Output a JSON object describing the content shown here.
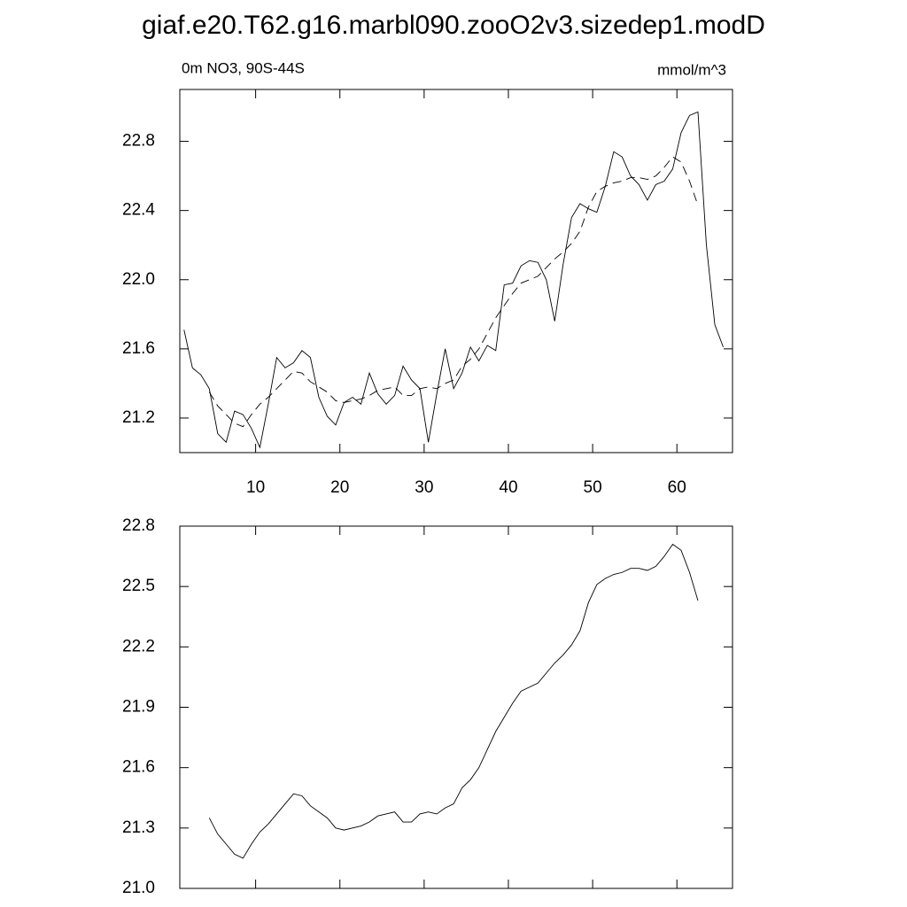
{
  "chart_data": [
    {
      "type": "line",
      "title": "giaf.e20.T62.g16.marbl090.zooO2v3.sizedep1.modD",
      "left_label": "0m NO3, 90S-44S",
      "right_label": "mmol/m^3",
      "x": [
        1.5,
        2.5,
        3.5,
        4.5,
        5.5,
        6.5,
        7.5,
        8.5,
        9.5,
        10.5,
        11.5,
        12.5,
        13.5,
        14.5,
        15.5,
        16.5,
        17.5,
        18.5,
        19.5,
        20.5,
        21.5,
        22.5,
        23.5,
        24.5,
        25.5,
        26.5,
        27.5,
        28.5,
        29.5,
        30.5,
        31.5,
        32.5,
        33.5,
        34.5,
        35.5,
        36.5,
        37.5,
        38.5,
        39.5,
        40.5,
        41.5,
        42.5,
        43.5,
        44.5,
        45.5,
        46.5,
        47.5,
        48.5,
        49.5,
        50.5,
        51.5,
        52.5,
        53.5,
        54.5,
        55.5,
        56.5,
        57.5,
        58.5,
        59.5,
        60.5,
        61.5,
        62.5,
        63.5,
        64.5,
        65.5
      ],
      "series": [
        {
          "color": "#000000",
          "dash": "solid",
          "values": [
            21.71,
            21.49,
            21.45,
            21.37,
            21.11,
            21.06,
            21.24,
            21.22,
            21.14,
            21.03,
            21.28,
            21.55,
            21.49,
            21.52,
            21.59,
            21.55,
            21.32,
            21.21,
            21.16,
            21.29,
            21.32,
            21.28,
            21.46,
            21.34,
            21.28,
            21.33,
            21.5,
            21.42,
            21.37,
            21.06,
            21.34,
            21.6,
            21.37,
            21.46,
            21.61,
            21.53,
            21.62,
            21.59,
            21.97,
            21.98,
            22.08,
            22.11,
            22.1,
            22.0,
            21.76,
            22.09,
            22.36,
            22.44,
            22.41,
            22.39,
            22.54,
            22.74,
            22.71,
            22.6,
            22.55,
            22.46,
            22.55,
            22.57,
            22.64,
            22.85,
            22.95,
            22.97,
            22.2,
            21.74,
            21.61
          ]
        },
        {
          "color": "#000000",
          "dash": "dashed",
          "values": [
            null,
            null,
            null,
            21.35,
            21.27,
            21.22,
            21.17,
            21.15,
            21.22,
            21.28,
            21.32,
            21.37,
            21.42,
            21.47,
            21.46,
            21.41,
            21.38,
            21.35,
            21.3,
            21.29,
            21.3,
            21.31,
            21.33,
            21.36,
            21.37,
            21.38,
            21.33,
            21.33,
            21.37,
            21.38,
            21.37,
            21.4,
            21.42,
            21.5,
            21.54,
            21.6,
            21.69,
            21.78,
            21.85,
            21.92,
            21.98,
            22.0,
            22.02,
            22.07,
            22.12,
            22.16,
            22.21,
            22.28,
            22.42,
            22.51,
            22.54,
            22.56,
            22.57,
            22.59,
            22.59,
            22.58,
            22.6,
            22.65,
            22.71,
            22.68,
            22.57,
            22.43,
            null,
            null,
            null
          ]
        }
      ],
      "xlim": [
        1,
        66.6
      ],
      "xticks": [
        10,
        20,
        30,
        40,
        50,
        60
      ],
      "ylim": [
        21.0,
        23.1
      ],
      "yticks": [
        {
          "value": 21.2,
          "label": "21.2"
        },
        {
          "value": 21.6,
          "label": "21.6"
        },
        {
          "value": 22.0,
          "label": "22.0"
        },
        {
          "value": 22.4,
          "label": "22.4"
        },
        {
          "value": 22.8,
          "label": "22.8"
        }
      ],
      "xtick_labels": true
    },
    {
      "type": "line",
      "x": [
        4.5,
        5.5,
        6.5,
        7.5,
        8.5,
        9.5,
        10.5,
        11.5,
        12.5,
        13.5,
        14.5,
        15.5,
        16.5,
        17.5,
        18.5,
        19.5,
        20.5,
        21.5,
        22.5,
        23.5,
        24.5,
        25.5,
        26.5,
        27.5,
        28.5,
        29.5,
        30.5,
        31.5,
        32.5,
        33.5,
        34.5,
        35.5,
        36.5,
        37.5,
        38.5,
        39.5,
        40.5,
        41.5,
        42.5,
        43.5,
        44.5,
        45.5,
        46.5,
        47.5,
        48.5,
        49.5,
        50.5,
        51.5,
        52.5,
        53.5,
        54.5,
        55.5,
        56.5,
        57.5,
        58.5,
        59.5,
        60.5,
        61.5,
        62.5
      ],
      "series": [
        {
          "color": "#000000",
          "dash": "solid",
          "values": [
            21.35,
            21.27,
            21.22,
            21.17,
            21.15,
            21.22,
            21.28,
            21.32,
            21.37,
            21.42,
            21.47,
            21.46,
            21.41,
            21.38,
            21.35,
            21.3,
            21.29,
            21.3,
            21.31,
            21.33,
            21.36,
            21.37,
            21.38,
            21.33,
            21.33,
            21.37,
            21.38,
            21.37,
            21.4,
            21.42,
            21.5,
            21.54,
            21.6,
            21.69,
            21.78,
            21.85,
            21.92,
            21.98,
            22.0,
            22.02,
            22.07,
            22.12,
            22.16,
            22.21,
            22.28,
            22.42,
            22.51,
            22.54,
            22.56,
            22.57,
            22.59,
            22.59,
            22.58,
            22.6,
            22.65,
            22.71,
            22.68,
            22.57,
            22.43
          ]
        }
      ],
      "xlim": [
        1,
        66.6
      ],
      "xticks": [
        10,
        20,
        30,
        40,
        50,
        60
      ],
      "ylim": [
        21.0,
        22.8
      ],
      "yticks": [
        {
          "value": 21.0,
          "label": "21.0"
        },
        {
          "value": 21.3,
          "label": "21.3"
        },
        {
          "value": 21.6,
          "label": "21.6"
        },
        {
          "value": 21.9,
          "label": "21.9"
        },
        {
          "value": 22.2,
          "label": "22.2"
        },
        {
          "value": 22.5,
          "label": "22.5"
        },
        {
          "value": 22.8,
          "label": "22.8"
        }
      ],
      "xtick_labels": false
    }
  ]
}
